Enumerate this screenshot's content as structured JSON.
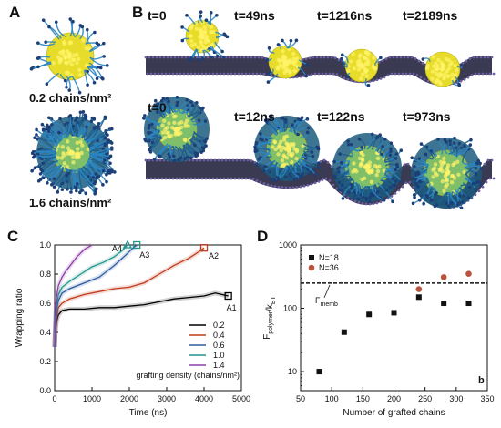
{
  "panels": {
    "a": {
      "label": "A",
      "np1_label": "0.2 chains/nm²",
      "np2_label": "1.6 chains/nm²"
    },
    "b": {
      "label": "B",
      "row1": [
        "t=0",
        "t=49ns",
        "t=1216ns",
        "t=2189ns"
      ],
      "row2": [
        "t=0",
        "t=12ns",
        "t=122ns",
        "t=973ns"
      ]
    },
    "c": {
      "label": "C"
    },
    "d": {
      "label": "D"
    }
  },
  "colors": {
    "gold": "#e8dc2a",
    "chain_blue": "#2a86c2",
    "membrane_dark": "#3a3a52",
    "membrane_purple": "#6d5fa3"
  },
  "chart_data": [
    {
      "id": "C",
      "type": "line",
      "xlabel": "Time (ns)",
      "ylabel": "Wrapping ratio",
      "xlim": [
        0,
        5000
      ],
      "ylim": [
        0,
        1.0
      ],
      "xticks": [
        "0",
        "1000",
        "2000",
        "3000",
        "4000",
        "5000"
      ],
      "yticks": [
        "0.0",
        "0.2",
        "0.4",
        "0.6",
        "0.8",
        "1.0"
      ],
      "legend_title": "grafting density (chains/nm²)",
      "legend_position": "bottom-right",
      "series": [
        {
          "name": "0.2",
          "color": "#000000",
          "x": [
            0,
            20,
            50,
            100,
            200,
            400,
            800,
            1200,
            1600,
            2000,
            2400,
            2800,
            3200,
            3600,
            4000,
            4300,
            4650
          ],
          "y": [
            0.3,
            0.4,
            0.47,
            0.52,
            0.55,
            0.56,
            0.56,
            0.57,
            0.57,
            0.58,
            0.59,
            0.61,
            0.63,
            0.64,
            0.65,
            0.67,
            0.65
          ]
        },
        {
          "name": "0.4",
          "color": "#c0391b",
          "x": [
            0,
            20,
            50,
            100,
            200,
            400,
            800,
            1200,
            1600,
            2000,
            2400,
            2800,
            3200,
            3600,
            3900,
            4000
          ],
          "y": [
            0.3,
            0.42,
            0.5,
            0.57,
            0.6,
            0.63,
            0.66,
            0.68,
            0.7,
            0.71,
            0.74,
            0.8,
            0.86,
            0.91,
            0.96,
            0.98
          ]
        },
        {
          "name": "0.6",
          "color": "#2c5aa0",
          "x": [
            0,
            20,
            50,
            100,
            200,
            400,
            800,
            1200,
            1600,
            1900,
            2100,
            2200
          ],
          "y": [
            0.3,
            0.45,
            0.55,
            0.62,
            0.67,
            0.7,
            0.74,
            0.78,
            0.86,
            0.93,
            0.98,
            1.0
          ]
        },
        {
          "name": "1.0",
          "color": "#21958b",
          "x": [
            0,
            20,
            50,
            100,
            200,
            400,
            700,
            1000,
            1300,
            1600,
            1800,
            1950
          ],
          "y": [
            0.3,
            0.48,
            0.58,
            0.66,
            0.71,
            0.75,
            0.8,
            0.85,
            0.88,
            0.92,
            0.96,
            1.0
          ]
        },
        {
          "name": "1.4",
          "color": "#8e3fa8",
          "x": [
            0,
            20,
            50,
            100,
            200,
            300,
            450,
            600,
            800,
            1000
          ],
          "y": [
            0.3,
            0.52,
            0.64,
            0.72,
            0.78,
            0.82,
            0.87,
            0.92,
            0.97,
            1.0
          ]
        }
      ],
      "annotations": [
        {
          "text": "A1",
          "x": 4650,
          "y": 0.65,
          "marker": "square",
          "color": "#000000"
        },
        {
          "text": "A2",
          "x": 4000,
          "y": 0.98,
          "marker": "square",
          "color": "#c0391b"
        },
        {
          "text": "A3",
          "x": 2200,
          "y": 1.0,
          "marker": "square",
          "color": "#21958b"
        },
        {
          "text": "A4",
          "x": 1950,
          "y": 1.0,
          "marker": "triangle",
          "color": "#21958b"
        }
      ]
    },
    {
      "id": "D",
      "type": "scatter",
      "xlabel": "Number of grafted chains",
      "ylabel": "F_polymer/k_BT",
      "xlim": [
        50,
        350
      ],
      "ylim": [
        5,
        1000
      ],
      "yscale": "log",
      "xticks": [
        "50",
        "100",
        "150",
        "200",
        "250",
        "300",
        "350"
      ],
      "yticks": [
        "10",
        "100",
        "1000"
      ],
      "legend_position": "top-left",
      "annotation": "b",
      "reference_line": {
        "label": "F_memb",
        "y": 250
      },
      "series": [
        {
          "name": "N=18",
          "marker": "square",
          "color": "#111111",
          "x": [
            80,
            120,
            160,
            200,
            240,
            280,
            320
          ],
          "y": [
            10,
            42,
            80,
            85,
            150,
            120,
            120
          ]
        },
        {
          "name": "N=36",
          "marker": "circle",
          "color": "#b9533d",
          "x": [
            240,
            280,
            320
          ],
          "y": [
            200,
            310,
            350
          ]
        }
      ]
    }
  ]
}
